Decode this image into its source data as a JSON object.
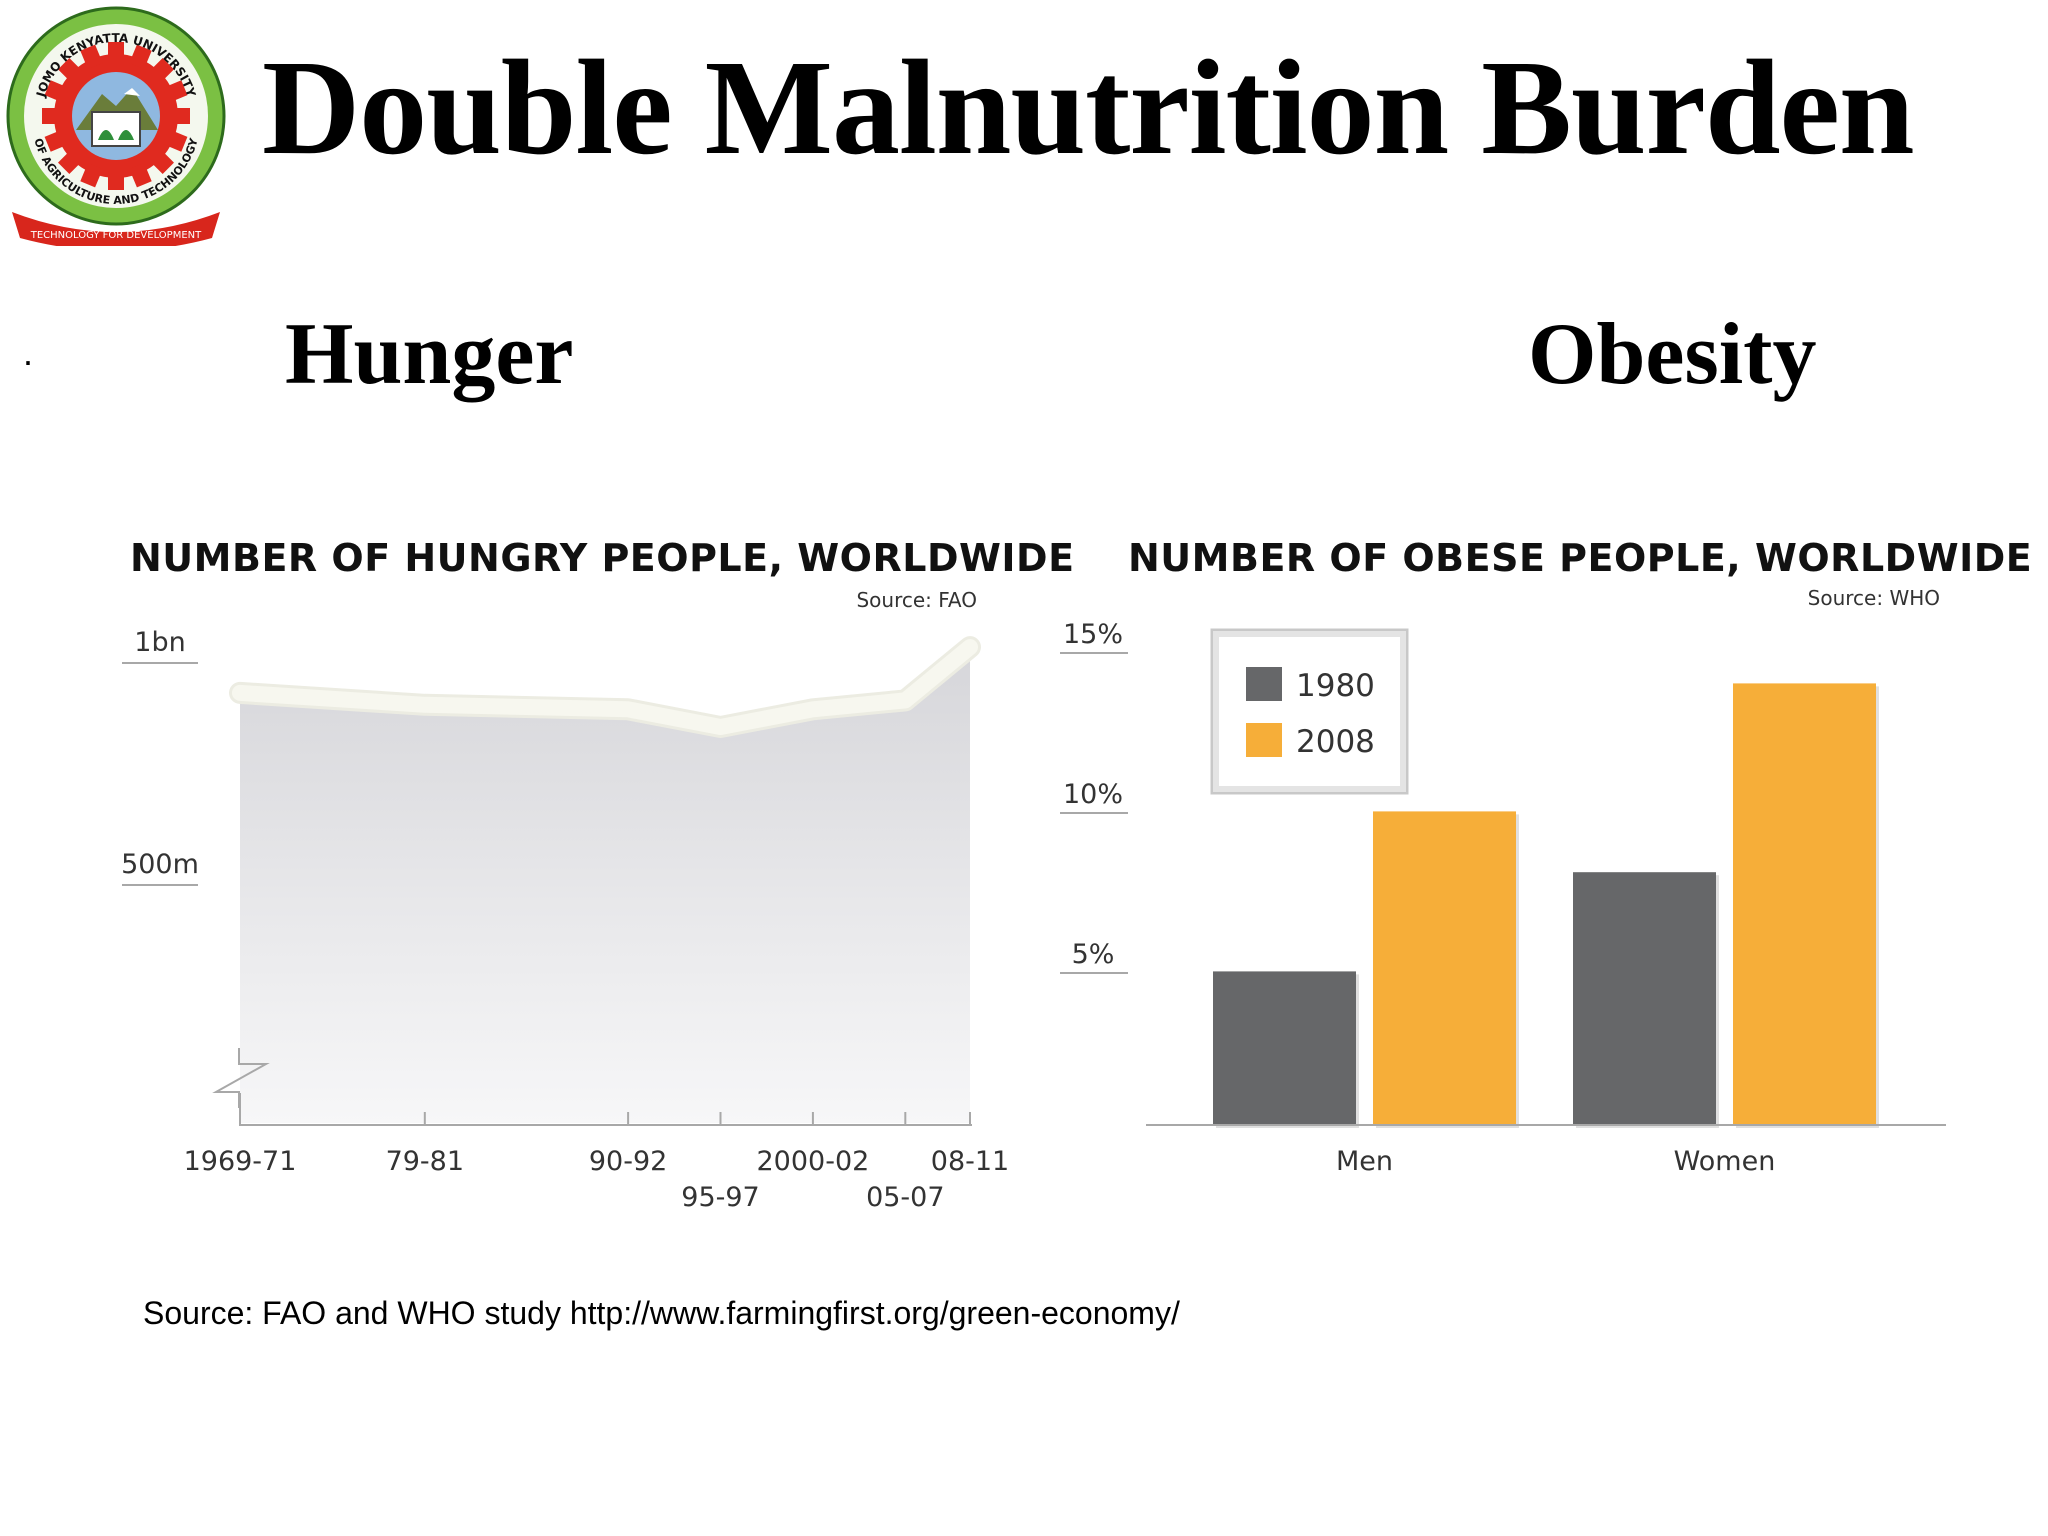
{
  "slide": {
    "title": "Double Malnutrition Burden",
    "bullet": "·",
    "left_heading": "Hunger",
    "right_heading": "Obesity",
    "footer": "Source: FAO and WHO study http://www.farmingfirst.org/green-economy/"
  },
  "logo": {
    "top_text": "JOMO KENYATTA UNIVERSITY",
    "bottom_text": "OF AGRICULTURE AND TECHNOLOGY",
    "motto": "TECHNOLOGY FOR DEVELOPMENT",
    "colors": {
      "gear": "#e02a1f",
      "ring": "#7bc043",
      "sky": "#8fb8e0",
      "mountain": "#6a7d3a"
    }
  },
  "colors": {
    "line_fill": "#e8e8ea",
    "line_stroke": "#f7f7ef",
    "bar_1980": "#666769",
    "bar_2008": "#f6ae39",
    "axis": "#a8a8a8"
  },
  "chart_data": [
    {
      "type": "area",
      "title": "NUMBER OF HUNGRY PEOPLE, WORLDWIDE",
      "source": "Source: FAO",
      "xlabel": "",
      "ylabel": "",
      "y_ticks": [
        {
          "value": 1000,
          "label": "1bn"
        },
        {
          "value": 500,
          "label": "500m"
        }
      ],
      "ylim": [
        0,
        1050
      ],
      "y_axis_break": true,
      "grid": false,
      "x_periods": [
        "1969-71",
        "79-81",
        "90-92",
        "95-97",
        "2000-02",
        "05-07",
        "08-11"
      ],
      "x_positions_years": [
        1970,
        1980,
        1991,
        1996,
        2001,
        2006,
        2009.5
      ],
      "values_millions": [
        917,
        890,
        880,
        840,
        880,
        900,
        1020
      ]
    },
    {
      "type": "bar",
      "title": "NUMBER OF OBESE PEOPLE, WORLDWIDE",
      "source": "Source: WHO",
      "categories": [
        "Men",
        "Women"
      ],
      "series": [
        {
          "name": "1980",
          "values": [
            4.8,
            7.9
          ]
        },
        {
          "name": "2008",
          "values": [
            9.8,
            13.8
          ]
        }
      ],
      "y_ticks": [
        "5%",
        "10%",
        "15%"
      ],
      "y_tick_values": [
        5,
        10,
        15
      ],
      "ylim": [
        0,
        16
      ],
      "xlabel": "",
      "ylabel": "",
      "legend_position": "top-left",
      "grid": false
    }
  ]
}
